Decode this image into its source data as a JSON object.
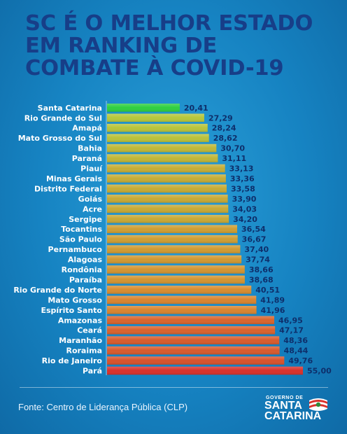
{
  "title_lines": [
    "SC É O MELHOR ESTADO",
    "EM RANKING DE",
    "COMBATE À COVID-19"
  ],
  "source": "Fonte: Centro de Liderança Pública (CLP)",
  "logo": {
    "top": "GOVERNO DE",
    "line1": "SANTA",
    "line2": "CATARINA"
  },
  "colors": {
    "title": "#173e88",
    "highlight": "#2fcf3f",
    "low": "#b5c83a",
    "mid": "#d98a2e",
    "high": "#d8302a"
  },
  "chart_data": {
    "type": "bar",
    "orientation": "horizontal",
    "categories": [
      "Santa Catarina",
      "Rio Grande do Sul",
      "Amapá",
      "Mato Grosso do Sul",
      "Bahia",
      "Paraná",
      "Piauí",
      "Minas Gerais",
      "Distrito Federal",
      "Goiás",
      "Acre",
      "Sergipe",
      "Tocantins",
      "São Paulo",
      "Pernambuco",
      "Alagoas",
      "Rondônia",
      "Paraíba",
      "Rio Grande do Norte",
      "Mato Grosso",
      "Espírito Santo",
      "Amazonas",
      "Ceará",
      "Maranhão",
      "Roraima",
      "Rio de Janeiro",
      "Pará"
    ],
    "values": [
      20.41,
      27.29,
      28.24,
      28.62,
      30.7,
      31.11,
      33.13,
      33.36,
      33.58,
      33.9,
      34.03,
      34.2,
      36.54,
      36.67,
      37.4,
      37.74,
      38.66,
      38.68,
      40.51,
      41.89,
      41.96,
      46.95,
      47.17,
      48.36,
      48.44,
      49.76,
      55.0
    ],
    "value_labels": [
      "20,41",
      "27,29",
      "28,24",
      "28,62",
      "30,70",
      "31,11",
      "33,13",
      "33,36",
      "33,58",
      "33,90",
      "34,03",
      "34,20",
      "36,54",
      "36,67",
      "37,40",
      "37,74",
      "38,66",
      "38,68",
      "40,51",
      "41,89",
      "41,96",
      "46,95",
      "47,17",
      "48,36",
      "48,44",
      "49,76",
      "55,00"
    ],
    "xlim": [
      0,
      55
    ],
    "grid": false,
    "legend": "none"
  }
}
